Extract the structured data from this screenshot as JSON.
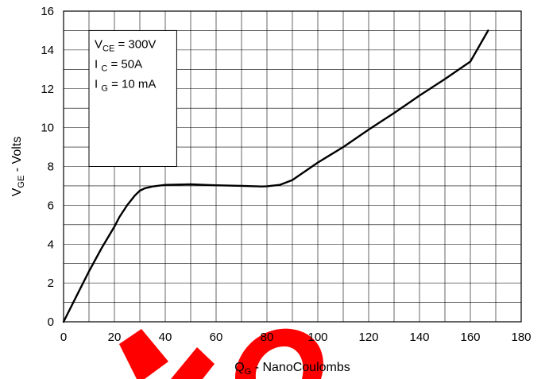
{
  "chart_data": {
    "type": "line",
    "title": "",
    "xlabel": {
      "main": "Q",
      "sub": "G",
      "rest": " - NanoCoulombs"
    },
    "ylabel": {
      "main": "V",
      "sub": "GE",
      "rest": " - Volts"
    },
    "xlim": [
      0,
      180
    ],
    "ylim": [
      0,
      16
    ],
    "x_ticks": [
      0,
      20,
      40,
      60,
      80,
      100,
      120,
      140,
      160,
      180
    ],
    "y_ticks": [
      0,
      2,
      4,
      6,
      8,
      10,
      12,
      14,
      16
    ],
    "x_tick_labels": [
      "0",
      "20",
      "40",
      "60",
      "80",
      "100",
      "120",
      "140",
      "160",
      "180"
    ],
    "y_tick_labels": [
      "0",
      "2",
      "4",
      "6",
      "8",
      "10",
      "12",
      "14",
      "16"
    ],
    "grid": true,
    "grid_minor_x_step": 10,
    "grid_minor_y_step": 1,
    "conditions": [
      {
        "main": "V",
        "sub": "CE",
        "rest": " = 300V"
      },
      {
        "main": "I ",
        "sub": "C",
        "rest": " = 50A"
      },
      {
        "main": "I ",
        "sub": "G",
        "rest": " = 10 mA"
      }
    ],
    "legend_placement": "top-left",
    "series": [
      {
        "color": "#000000",
        "x": [
          0,
          5,
          10,
          15,
          20,
          22,
          25,
          28,
          30,
          32,
          35,
          40,
          50,
          60,
          70,
          78,
          80,
          85,
          90,
          95,
          100,
          105,
          110,
          120,
          130,
          140,
          150,
          160,
          167
        ],
        "y": [
          0,
          1.3,
          2.6,
          3.8,
          4.9,
          5.4,
          6.0,
          6.5,
          6.75,
          6.88,
          6.97,
          7.05,
          7.08,
          7.03,
          7.0,
          6.97,
          6.98,
          7.05,
          7.3,
          7.75,
          8.2,
          8.6,
          9.0,
          9.9,
          10.75,
          11.65,
          12.5,
          13.4,
          15.0
        ]
      }
    ]
  },
  "watermark": {
    "color": "#ff0000"
  }
}
